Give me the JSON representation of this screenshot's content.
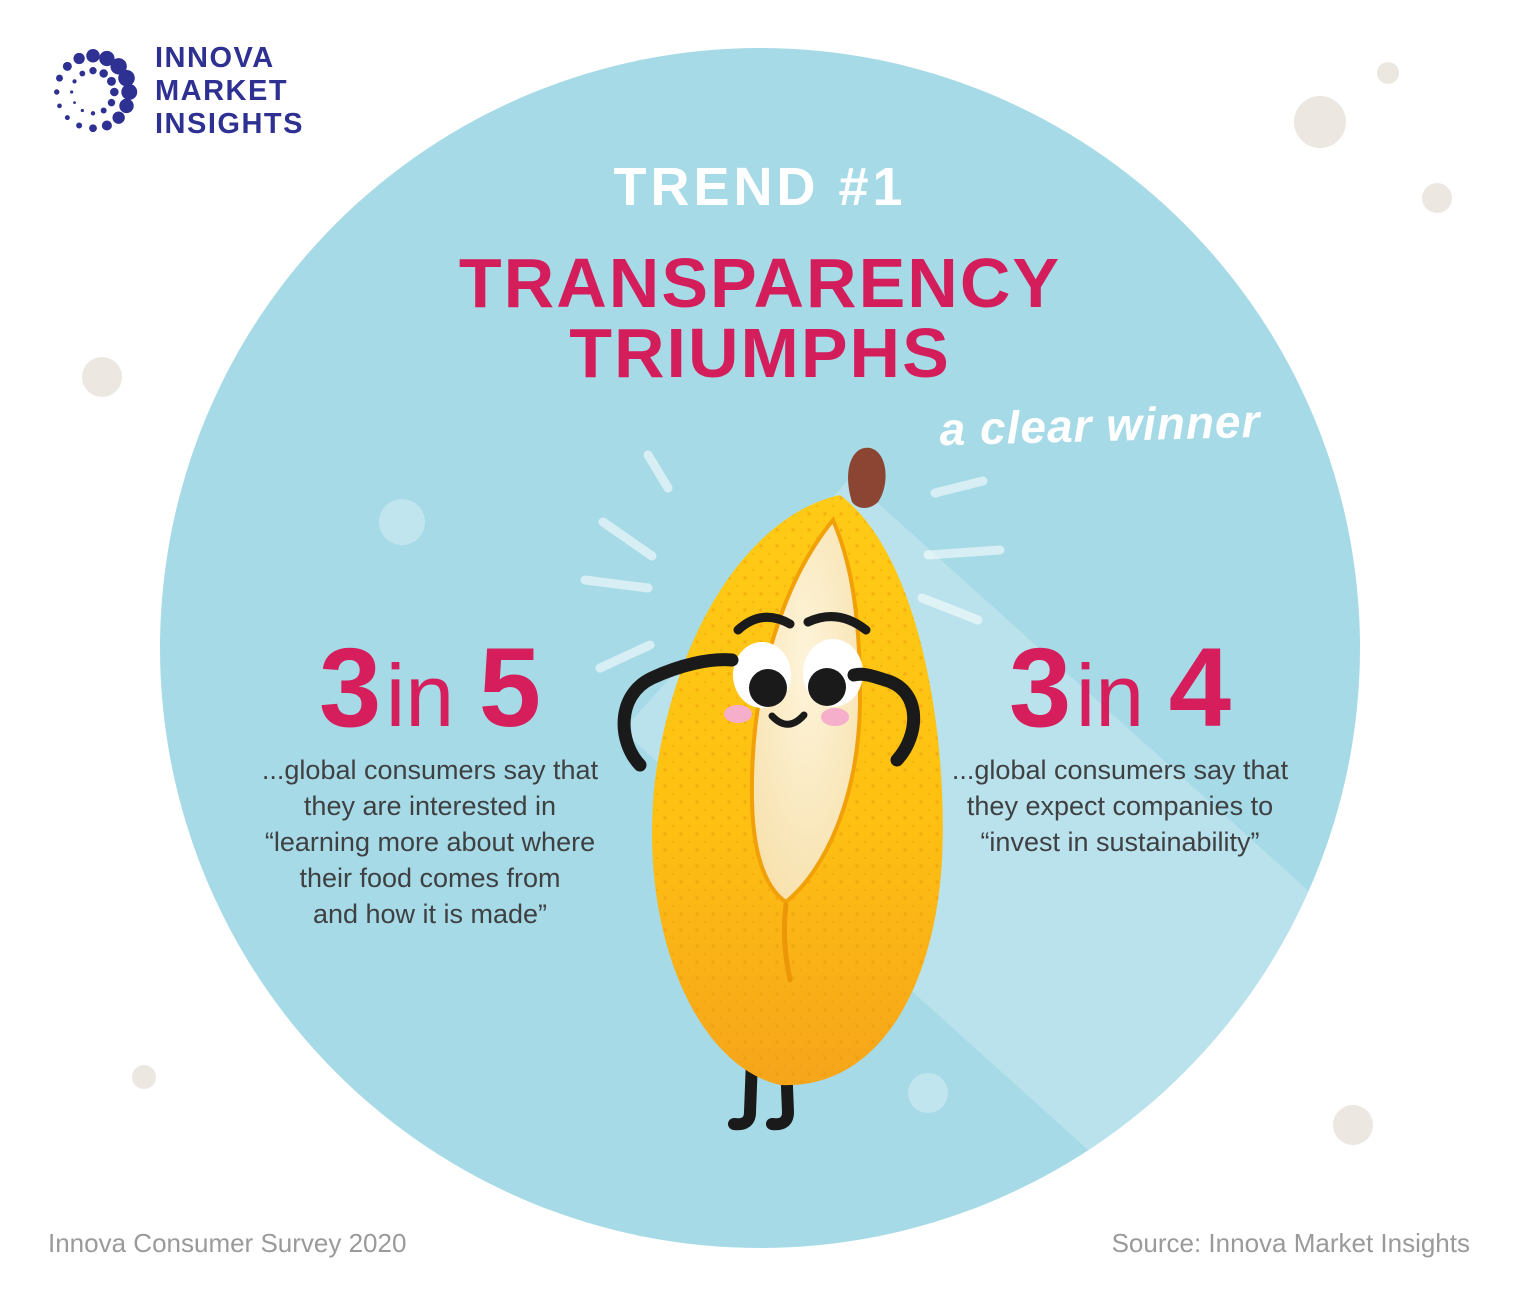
{
  "logo": {
    "icon": "dot-ring-logo-icon",
    "lines": [
      "INNOVA",
      "MARKET",
      "INSIGHTS"
    ],
    "color": "#2E3192"
  },
  "header": {
    "trend_label": "TREND #1",
    "title_line1": "TRANSPARENCY",
    "title_line2": "TRIUMPHS",
    "tagline": "a clear winner",
    "title_color": "#D41E5C",
    "trend_label_color": "#FFFFFF"
  },
  "stats": {
    "left": {
      "numerator": "3",
      "connector": "in",
      "denominator": "5",
      "lines": [
        "...global consumers say that",
        "they are interested in",
        "“learning more about where",
        "their food comes from",
        "and how it is made”"
      ]
    },
    "right": {
      "numerator": "3",
      "connector": "in",
      "denominator": "4",
      "lines": [
        "...global consumers say that",
        "they expect companies to",
        "“invest in sustainability”"
      ]
    }
  },
  "chart_data": {
    "type": "table",
    "title": "TREND #1 — TRANSPARENCY TRIUMPHS (a clear winner)",
    "stats": [
      {
        "ratio": "3 in 5",
        "numerator": 3,
        "denominator": 5,
        "statement": "...global consumers say that they are interested in “learning more about where their food comes from and how it is made”"
      },
      {
        "ratio": "3 in 4",
        "numerator": 3,
        "denominator": 4,
        "statement": "...global consumers say that they expect companies to “invest in sustainability”"
      }
    ],
    "source": "Innova Market Insights"
  },
  "illustration": {
    "name": "banana-character",
    "description": "smiling banana with hands behind head, shine rays and light beam",
    "colors": {
      "peel_top": "#FFCA15",
      "peel_bottom": "#F6A51B",
      "flesh": "#F8E2AC",
      "flesh_highlight": "#FEF4DA",
      "stem": "#8B4532",
      "face": "#1A1A1A",
      "cheeks": "#F5AFCB",
      "circle_background": "#A6DAE7"
    }
  },
  "footer": {
    "left": "Innova Consumer Survey 2020",
    "right": "Source: Innova Market Insights"
  }
}
